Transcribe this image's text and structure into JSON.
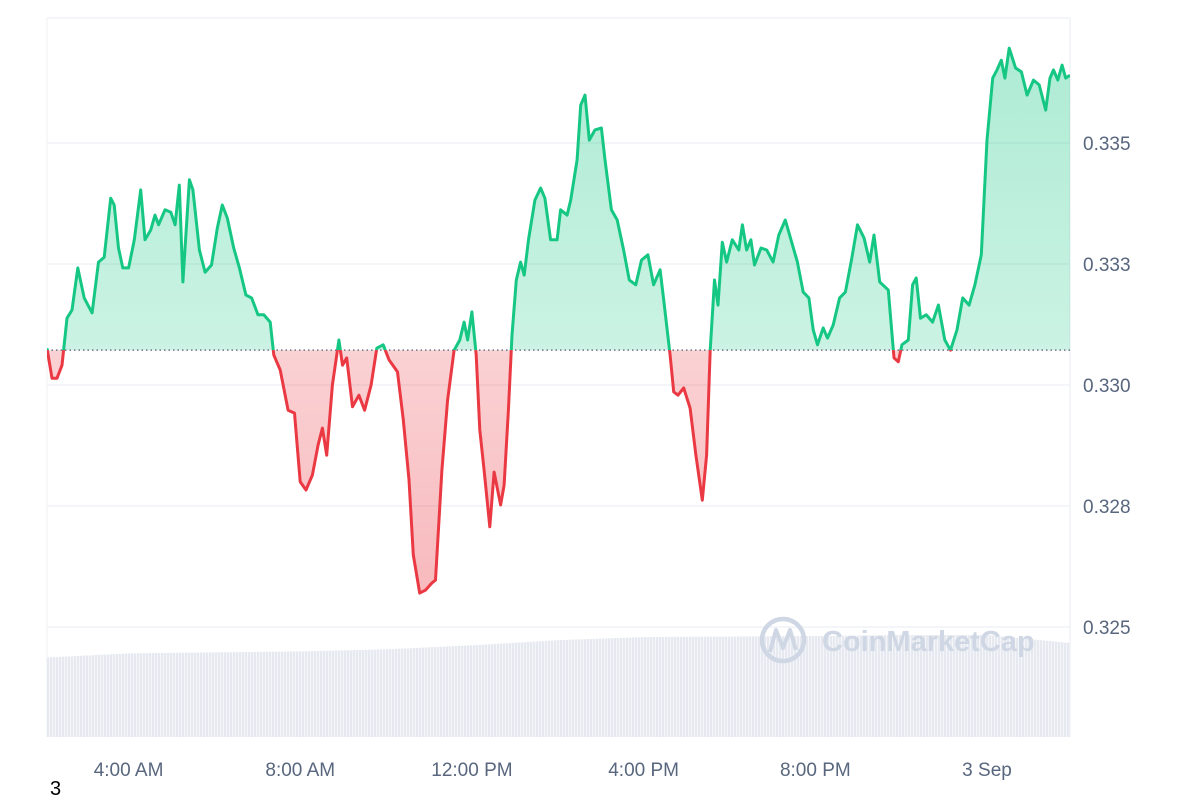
{
  "chart_data": {
    "type": "area",
    "baseline_price": 0.33072,
    "colors": {
      "up": "#16c784",
      "down": "#ea3943",
      "grid": "#eff2f5",
      "volume": "#e6eaf0",
      "axis_text": "#58667e"
    },
    "ylim": [
      0.3237,
      0.3376
    ],
    "yticks": [
      {
        "value": 0.335,
        "label": "0.335"
      },
      {
        "value": 0.3325,
        "label": "0.333"
      },
      {
        "value": 0.33,
        "label": "0.330"
      },
      {
        "value": 0.3275,
        "label": "0.328"
      },
      {
        "value": 0.325,
        "label": "0.325"
      }
    ],
    "xrange": [
      "02:06",
      "01:56"
    ],
    "xticks": [
      {
        "time": "04:00",
        "label": "4:00 AM"
      },
      {
        "time": "08:00",
        "label": "8:00 AM"
      },
      {
        "time": "12:00",
        "label": "12:00 PM"
      },
      {
        "time": "16:00",
        "label": "4:00 PM"
      },
      {
        "time": "20:00",
        "label": "8:00 PM"
      },
      {
        "time": "00:00",
        "label": "3 Sep"
      }
    ],
    "grid": true,
    "price_series": [
      [
        "02:06",
        0.33076
      ],
      [
        "02:13",
        0.33014
      ],
      [
        "02:20",
        0.33014
      ],
      [
        "02:27",
        0.33041
      ],
      [
        "02:34",
        0.33138
      ],
      [
        "02:41",
        0.33155
      ],
      [
        "02:49",
        0.33242
      ],
      [
        "02:58",
        0.3318
      ],
      [
        "03:09",
        0.33149
      ],
      [
        "03:18",
        0.33254
      ],
      [
        "03:26",
        0.33264
      ],
      [
        "03:35",
        0.33386
      ],
      [
        "03:40",
        0.33372
      ],
      [
        "03:46",
        0.33283
      ],
      [
        "03:52",
        0.33242
      ],
      [
        "04:00",
        0.33242
      ],
      [
        "04:08",
        0.333
      ],
      [
        "04:17",
        0.33403
      ],
      [
        "04:23",
        0.333
      ],
      [
        "04:31",
        0.3332
      ],
      [
        "04:37",
        0.33351
      ],
      [
        "04:42",
        0.33331
      ],
      [
        "04:51",
        0.33362
      ],
      [
        "04:59",
        0.33357
      ],
      [
        "05:05",
        0.33331
      ],
      [
        "05:11",
        0.33413
      ],
      [
        "05:16",
        0.33213
      ],
      [
        "05:25",
        0.33424
      ],
      [
        "05:30",
        0.33403
      ],
      [
        "05:39",
        0.33279
      ],
      [
        "05:47",
        0.33233
      ],
      [
        "05:56",
        0.33248
      ],
      [
        "06:04",
        0.33324
      ],
      [
        "06:11",
        0.33372
      ],
      [
        "06:18",
        0.33345
      ],
      [
        "06:27",
        0.33283
      ],
      [
        "06:35",
        0.33242
      ],
      [
        "06:44",
        0.33186
      ],
      [
        "06:52",
        0.3318
      ],
      [
        "07:01",
        0.33145
      ],
      [
        "07:09",
        0.33145
      ],
      [
        "07:18",
        0.3313
      ],
      [
        "07:23",
        0.33062
      ],
      [
        "07:32",
        0.33031
      ],
      [
        "07:43",
        0.32948
      ],
      [
        "07:52",
        0.32942
      ],
      [
        "08:00",
        0.328
      ],
      [
        "08:08",
        0.32783
      ],
      [
        "08:17",
        0.32814
      ],
      [
        "08:25",
        0.32876
      ],
      [
        "08:31",
        0.32911
      ],
      [
        "08:37",
        0.32855
      ],
      [
        "08:45",
        0.33
      ],
      [
        "08:54",
        0.33093
      ],
      [
        "08:59",
        0.33041
      ],
      [
        "09:05",
        0.33056
      ],
      [
        "09:13",
        0.32955
      ],
      [
        "09:22",
        0.32979
      ],
      [
        "09:30",
        0.32948
      ],
      [
        "09:39",
        0.33
      ],
      [
        "09:47",
        0.33076
      ],
      [
        "09:56",
        0.33083
      ],
      [
        "10:04",
        0.33052
      ],
      [
        "10:16",
        0.33027
      ],
      [
        "10:24",
        0.32928
      ],
      [
        "10:32",
        0.32804
      ],
      [
        "10:38",
        0.32649
      ],
      [
        "10:47",
        0.3257
      ],
      [
        "10:55",
        0.32576
      ],
      [
        "11:04",
        0.32591
      ],
      [
        "11:09",
        0.32597
      ],
      [
        "11:18",
        0.32824
      ],
      [
        "11:26",
        0.32969
      ],
      [
        "11:35",
        0.33072
      ],
      [
        "11:43",
        0.33093
      ],
      [
        "11:49",
        0.3313
      ],
      [
        "11:54",
        0.33093
      ],
      [
        "12:00",
        0.33151
      ],
      [
        "12:06",
        0.33062
      ],
      [
        "12:11",
        0.32907
      ],
      [
        "12:17",
        0.32824
      ],
      [
        "12:25",
        0.32707
      ],
      [
        "12:31",
        0.3282
      ],
      [
        "12:40",
        0.32752
      ],
      [
        "12:45",
        0.32793
      ],
      [
        "12:51",
        0.32948
      ],
      [
        "12:56",
        0.33103
      ],
      [
        "13:02",
        0.33217
      ],
      [
        "13:08",
        0.33254
      ],
      [
        "13:13",
        0.33227
      ],
      [
        "13:19",
        0.333
      ],
      [
        "13:28",
        0.33382
      ],
      [
        "13:36",
        0.33407
      ],
      [
        "13:42",
        0.33386
      ],
      [
        "13:50",
        0.333
      ],
      [
        "13:59",
        0.333
      ],
      [
        "14:04",
        0.33362
      ],
      [
        "14:13",
        0.33351
      ],
      [
        "14:18",
        0.33382
      ],
      [
        "14:27",
        0.33465
      ],
      [
        "14:32",
        0.33578
      ],
      [
        "14:38",
        0.33599
      ],
      [
        "14:44",
        0.33506
      ],
      [
        "14:52",
        0.33527
      ],
      [
        "15:01",
        0.33531
      ],
      [
        "15:06",
        0.33465
      ],
      [
        "15:15",
        0.33362
      ],
      [
        "15:23",
        0.33341
      ],
      [
        "15:32",
        0.33279
      ],
      [
        "15:40",
        0.33217
      ],
      [
        "15:49",
        0.33207
      ],
      [
        "15:57",
        0.33258
      ],
      [
        "16:06",
        0.33269
      ],
      [
        "16:14",
        0.33207
      ],
      [
        "16:23",
        0.33238
      ],
      [
        "16:28",
        0.33176
      ],
      [
        "16:37",
        0.33062
      ],
      [
        "16:42",
        0.32986
      ],
      [
        "16:48",
        0.32979
      ],
      [
        "16:56",
        0.32994
      ],
      [
        "17:05",
        0.32952
      ],
      [
        "17:13",
        0.32855
      ],
      [
        "17:22",
        0.32762
      ],
      [
        "17:28",
        0.32855
      ],
      [
        "17:33",
        0.33072
      ],
      [
        "17:39",
        0.33217
      ],
      [
        "17:44",
        0.33165
      ],
      [
        "17:50",
        0.33295
      ],
      [
        "17:56",
        0.33254
      ],
      [
        "18:04",
        0.333
      ],
      [
        "18:13",
        0.33279
      ],
      [
        "18:18",
        0.33331
      ],
      [
        "18:24",
        0.33279
      ],
      [
        "18:30",
        0.333
      ],
      [
        "18:35",
        0.33248
      ],
      [
        "18:44",
        0.33283
      ],
      [
        "18:52",
        0.33279
      ],
      [
        "19:01",
        0.33254
      ],
      [
        "19:09",
        0.3331
      ],
      [
        "19:18",
        0.33341
      ],
      [
        "19:26",
        0.333
      ],
      [
        "19:35",
        0.33254
      ],
      [
        "19:43",
        0.33192
      ],
      [
        "19:51",
        0.3318
      ],
      [
        "19:57",
        0.33114
      ],
      [
        "20:03",
        0.33083
      ],
      [
        "20:11",
        0.33118
      ],
      [
        "20:17",
        0.33097
      ],
      [
        "20:25",
        0.33124
      ],
      [
        "20:34",
        0.3318
      ],
      [
        "20:42",
        0.33192
      ],
      [
        "20:51",
        0.33262
      ],
      [
        "20:59",
        0.33331
      ],
      [
        "21:08",
        0.33304
      ],
      [
        "21:16",
        0.33254
      ],
      [
        "21:22",
        0.3331
      ],
      [
        "21:30",
        0.33213
      ],
      [
        "21:42",
        0.33196
      ],
      [
        "21:50",
        0.33056
      ],
      [
        "21:56",
        0.33048
      ],
      [
        "22:01",
        0.33083
      ],
      [
        "22:10",
        0.33093
      ],
      [
        "22:16",
        0.33207
      ],
      [
        "22:21",
        0.33221
      ],
      [
        "22:27",
        0.33138
      ],
      [
        "22:35",
        0.33145
      ],
      [
        "22:44",
        0.3313
      ],
      [
        "22:52",
        0.33165
      ],
      [
        "23:01",
        0.33093
      ],
      [
        "23:09",
        0.33072
      ],
      [
        "23:18",
        0.33114
      ],
      [
        "23:26",
        0.3318
      ],
      [
        "23:35",
        0.33165
      ],
      [
        "23:43",
        0.33207
      ],
      [
        "23:52",
        0.33269
      ],
      [
        "00:00",
        0.33506
      ],
      [
        "00:08",
        0.33634
      ],
      [
        "00:14",
        0.33651
      ],
      [
        "00:20",
        0.33671
      ],
      [
        "00:25",
        0.33634
      ],
      [
        "00:31",
        0.33696
      ],
      [
        "00:40",
        0.33655
      ],
      [
        "00:48",
        0.33647
      ],
      [
        "00:56",
        0.33599
      ],
      [
        "01:05",
        0.3363
      ],
      [
        "01:13",
        0.3362
      ],
      [
        "01:22",
        0.33568
      ],
      [
        "01:28",
        0.33634
      ],
      [
        "01:33",
        0.33651
      ],
      [
        "01:39",
        0.3363
      ],
      [
        "01:45",
        0.33661
      ],
      [
        "01:50",
        0.33634
      ],
      [
        "01:56",
        0.3364
      ]
    ],
    "volume_relative": [
      [
        "02:06",
        0.78
      ],
      [
        "04:00",
        0.82
      ],
      [
        "08:00",
        0.84
      ],
      [
        "10:00",
        0.86
      ],
      [
        "12:00",
        0.9
      ],
      [
        "14:00",
        0.95
      ],
      [
        "16:00",
        0.98
      ],
      [
        "20:00",
        0.99
      ],
      [
        "22:00",
        1.0
      ],
      [
        "00:00",
        1.0
      ],
      [
        "01:56",
        0.92
      ]
    ]
  },
  "watermark": "CoinMarketCap",
  "corner_label": "3"
}
